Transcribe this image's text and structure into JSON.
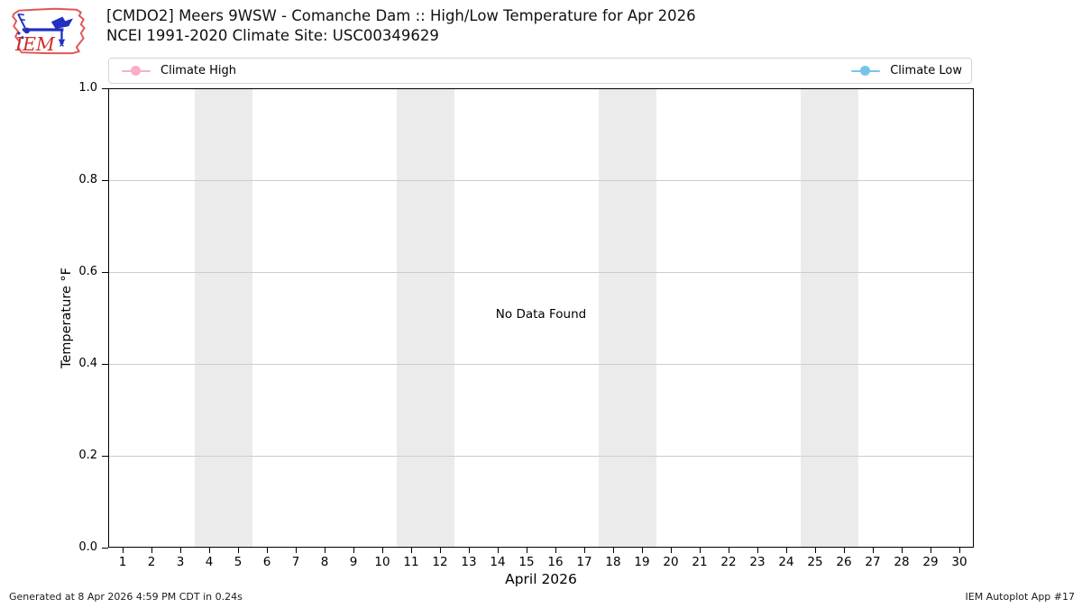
{
  "header": {
    "title_line1": "[CMDO2] Meers 9WSW - Comanche Dam :: High/Low Temperature for Apr 2026",
    "title_line2": "NCEI 1991-2020 Climate Site: USC00349629",
    "logo_text": "IEM"
  },
  "legend": {
    "high": {
      "label": "Climate High",
      "color": "#f9aec6"
    },
    "low": {
      "label": "Climate Low",
      "color": "#74c6e8"
    }
  },
  "chart_data": {
    "type": "line",
    "title": "[CMDO2] Meers 9WSW - Comanche Dam :: High/Low Temperature for Apr 2026",
    "subtitle": "NCEI 1991-2020 Climate Site: USC00349629",
    "xlabel": "April 2026",
    "ylabel": "Temperature °F",
    "xlim": [
      0.5,
      30.5
    ],
    "ylim": [
      0.0,
      1.0
    ],
    "x_tick_labels": [
      "1",
      "2",
      "3",
      "4",
      "5",
      "6",
      "7",
      "8",
      "9",
      "10",
      "11",
      "12",
      "13",
      "14",
      "15",
      "16",
      "17",
      "18",
      "19",
      "20",
      "21",
      "22",
      "23",
      "24",
      "25",
      "26",
      "27",
      "28",
      "29",
      "30"
    ],
    "y_tick_labels": [
      "0.0",
      "0.2",
      "0.4",
      "0.6",
      "0.8",
      "1.0"
    ],
    "grid": true,
    "grid_color": "#cccccc",
    "weekend_bands": [
      [
        3.5,
        5.5
      ],
      [
        10.5,
        12.5
      ],
      [
        17.5,
        19.5
      ],
      [
        24.5,
        26.5
      ]
    ],
    "band_color": "#ebebeb",
    "legend_position": "top, spanning plot width (high left, low right)",
    "series": [
      {
        "name": "Climate High",
        "color": "#f9aec6",
        "values": []
      },
      {
        "name": "Climate Low",
        "color": "#74c6e8",
        "values": []
      }
    ],
    "no_data_text": "No Data Found"
  },
  "footer": {
    "generated": "Generated at 8 Apr 2026 4:59 PM CDT in 0.24s",
    "app": "IEM Autoplot App #17"
  }
}
